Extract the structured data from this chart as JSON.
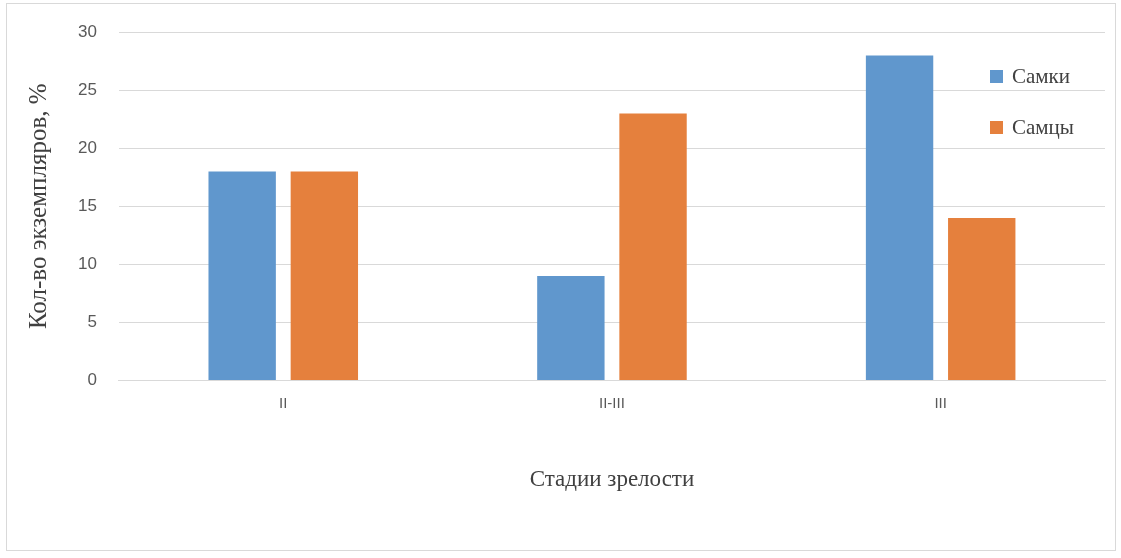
{
  "chart_data": {
    "type": "bar",
    "xlabel": "Стадии зрелости",
    "ylabel": "Кол-во экземпляров, %",
    "categories": [
      "II",
      "II-III",
      "III"
    ],
    "series": [
      {
        "name": "Самки",
        "color": "#6097cd",
        "values": [
          18,
          9,
          28
        ]
      },
      {
        "name": "Самцы",
        "color": "#e5803d",
        "values": [
          18,
          23,
          14
        ]
      }
    ],
    "ylim": [
      0,
      30
    ],
    "yticks": [
      0,
      5,
      10,
      15,
      20,
      25,
      30
    ],
    "grid": "y",
    "legend": "top right"
  }
}
